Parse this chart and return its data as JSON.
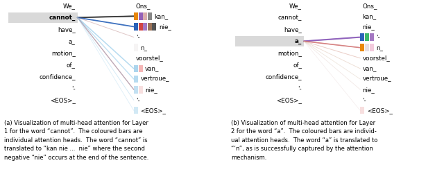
{
  "src_words": [
    "We_",
    "cannot_",
    "have_",
    "a_",
    "motion_",
    "of_",
    "confidence_",
    "'-",
    "<EOS>_"
  ],
  "tgt_words_a": [
    "Ons_",
    "kan_",
    "nie_",
    "'-",
    "n_",
    "voorstel_",
    "van_",
    "vertroue_",
    "nie_",
    "'-",
    "<EOS>_"
  ],
  "tgt_words_b": [
    "Ons_",
    "kan_",
    "nie_",
    "'-",
    "n_",
    "voorstel_",
    "van_",
    "vertroue_",
    "nie_",
    "'-",
    "<EOS>_"
  ],
  "panel_a_src_hi": 1,
  "panel_b_src_hi": 3,
  "panel_a_bars": {
    "1": [
      [
        "#E8870A",
        1.0
      ],
      [
        "#9460B8",
        1.0
      ],
      [
        "#D4A0A0",
        0.85
      ],
      [
        "#7A7A7A",
        0.9
      ]
    ],
    "2": [
      [
        "#2962B8",
        1.0
      ],
      [
        "#CC3030",
        0.9
      ],
      [
        "#9460B8",
        0.85
      ],
      [
        "#8B5A3C",
        0.85
      ],
      [
        "#404040",
        0.9
      ]
    ],
    "6": [
      [
        "#90C8E8",
        0.75
      ],
      [
        "#F09090",
        0.65
      ]
    ],
    "7": [
      [
        "#90C8E8",
        0.65
      ]
    ],
    "8": [
      [
        "#90C8E8",
        0.55
      ],
      [
        "#F0C0C0",
        0.5
      ]
    ],
    "4": [
      [
        "#E8E0E0",
        0.35
      ]
    ],
    "10": [
      [
        "#90C8E8",
        0.4
      ]
    ]
  },
  "panel_b_bars": {
    "3": [
      [
        "#2962B8",
        1.0
      ],
      [
        "#3CB86A",
        1.0
      ],
      [
        "#9460B8",
        0.85
      ]
    ],
    "4": [
      [
        "#E8870A",
        1.0
      ],
      [
        "#D0C0C8",
        0.5
      ],
      [
        "#E8A0C0",
        0.55
      ]
    ],
    "10": [
      [
        "#F0C0C0",
        0.5
      ]
    ]
  },
  "panel_a_lines": [
    {
      "si": 1,
      "ti": 1,
      "color": "#505050",
      "alpha": 0.95,
      "lw": 1.4
    },
    {
      "si": 1,
      "ti": 1,
      "color": "#303030",
      "alpha": 0.85,
      "lw": 1.0
    },
    {
      "si": 1,
      "ti": 2,
      "color": "#2962B8",
      "alpha": 0.9,
      "lw": 1.3
    },
    {
      "si": 1,
      "ti": 3,
      "color": "#C09090",
      "alpha": 0.5,
      "lw": 0.7
    },
    {
      "si": 1,
      "ti": 6,
      "color": "#90C8E8",
      "alpha": 0.65,
      "lw": 1.1
    },
    {
      "si": 1,
      "ti": 7,
      "color": "#90C8E8",
      "alpha": 0.55,
      "lw": 1.0
    },
    {
      "si": 1,
      "ti": 8,
      "color": "#D07070",
      "alpha": 0.75,
      "lw": 0.9
    },
    {
      "si": 1,
      "ti": 8,
      "color": "#90C8E8",
      "alpha": 0.45,
      "lw": 0.85
    },
    {
      "si": 1,
      "ti": 9,
      "color": "#90C8E8",
      "alpha": 0.35,
      "lw": 0.75
    },
    {
      "si": 1,
      "ti": 10,
      "color": "#90C8E8",
      "alpha": 0.28,
      "lw": 0.65
    }
  ],
  "panel_b_lines": [
    {
      "si": 3,
      "ti": 3,
      "color": "#8050B0",
      "alpha": 0.85,
      "lw": 1.5
    },
    {
      "si": 3,
      "ti": 3,
      "color": "#9060C0",
      "alpha": 0.7,
      "lw": 0.9
    },
    {
      "si": 3,
      "ti": 4,
      "color": "#D06060",
      "alpha": 0.75,
      "lw": 1.2
    },
    {
      "si": 3,
      "ti": 4,
      "color": "#D08080",
      "alpha": 0.55,
      "lw": 0.75
    },
    {
      "si": 3,
      "ti": 5,
      "color": "#D09080",
      "alpha": 0.45,
      "lw": 0.7
    },
    {
      "si": 3,
      "ti": 6,
      "color": "#D0A890",
      "alpha": 0.38,
      "lw": 0.65
    },
    {
      "si": 3,
      "ti": 7,
      "color": "#D0B8A0",
      "alpha": 0.32,
      "lw": 0.65
    },
    {
      "si": 3,
      "ti": 8,
      "color": "#D0B0A8",
      "alpha": 0.28,
      "lw": 0.6
    },
    {
      "si": 3,
      "ti": 10,
      "color": "#D0B0B0",
      "alpha": 0.22,
      "lw": 0.55
    }
  ],
  "caption_a": "(a) Visualization of multi-head attention for Layer\n1 for the word “cannot”.  The coloured bars are\nindividual attention heads.  The word “cannot” is\ntranslated to “kan nie ...  nie” where the second\nnegative “nie” occurs at the end of the sentence.",
  "caption_b": "(b) Visualization of multi-head attention for Layer\n2 for the word “a”.  The coloured bars are individ-\nual attention heads.  The word “a” is translated to\n“‘n”, as is successfully captured by the attention\nmechanism."
}
